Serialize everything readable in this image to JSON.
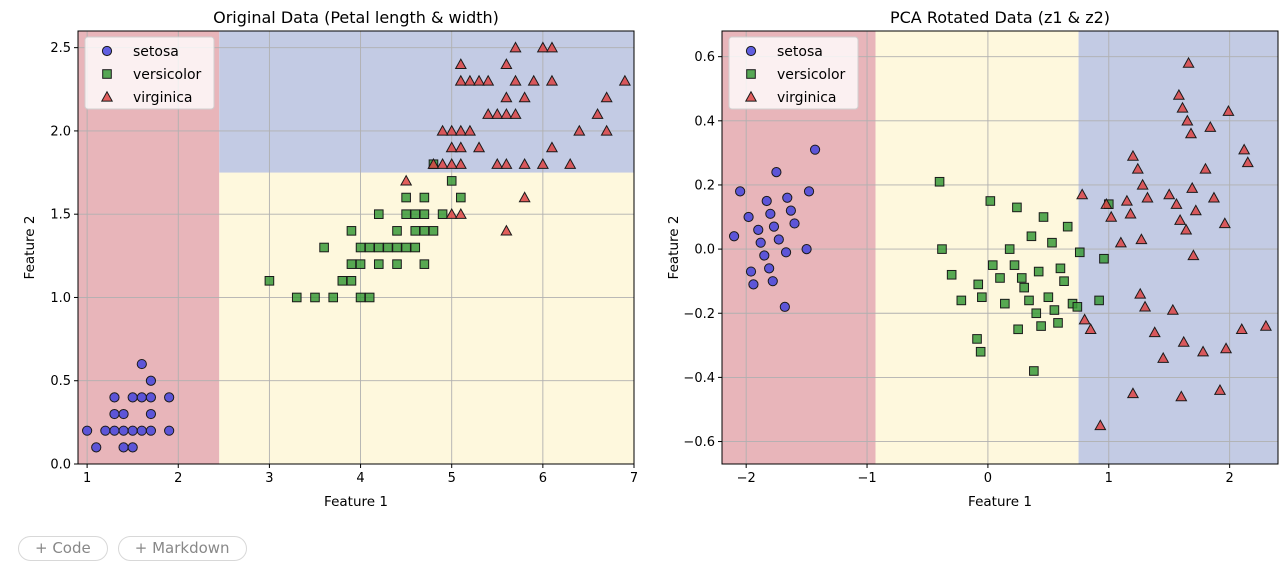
{
  "chart_data": [
    {
      "type": "scatter",
      "title": "Original Data (Petal length & width)",
      "xlabel": "Feature 1",
      "ylabel": "Feature 2",
      "xlim": [
        0.9,
        7.0
      ],
      "ylim": [
        0.0,
        2.6
      ],
      "xticks": [
        1,
        2,
        3,
        4,
        5,
        6,
        7
      ],
      "xtick_labels": [
        "1",
        "2",
        "3",
        "4",
        "5",
        "6",
        "7"
      ],
      "yticks": [
        0.0,
        0.5,
        1.0,
        1.5,
        2.0,
        2.5
      ],
      "ytick_labels": [
        "0.0",
        "0.5",
        "1.0",
        "1.5",
        "2.0",
        "2.5"
      ],
      "grid": true,
      "legend": "top-left",
      "decision_regions": [
        {
          "class": "setosa",
          "color": "#e8b5ba",
          "x": [
            0.9,
            2.45
          ],
          "y": [
            0.0,
            2.6
          ]
        },
        {
          "class": "versicolor",
          "color": "#fef8dd",
          "x": [
            2.45,
            7.0
          ],
          "y": [
            0.0,
            1.75
          ]
        },
        {
          "class": "virginica",
          "color": "#c3cbe4",
          "x": [
            2.45,
            7.0
          ],
          "y": [
            1.75,
            2.6
          ]
        }
      ],
      "series": [
        {
          "name": "setosa",
          "marker": "circle",
          "color": "#4444dd",
          "points": [
            [
              1.0,
              0.2
            ],
            [
              1.1,
              0.1
            ],
            [
              1.2,
              0.2
            ],
            [
              1.3,
              0.2
            ],
            [
              1.3,
              0.3
            ],
            [
              1.3,
              0.4
            ],
            [
              1.4,
              0.1
            ],
            [
              1.4,
              0.2
            ],
            [
              1.4,
              0.3
            ],
            [
              1.5,
              0.1
            ],
            [
              1.5,
              0.2
            ],
            [
              1.5,
              0.4
            ],
            [
              1.6,
              0.2
            ],
            [
              1.6,
              0.4
            ],
            [
              1.6,
              0.6
            ],
            [
              1.7,
              0.2
            ],
            [
              1.7,
              0.3
            ],
            [
              1.7,
              0.4
            ],
            [
              1.7,
              0.5
            ],
            [
              1.9,
              0.2
            ],
            [
              1.9,
              0.4
            ]
          ]
        },
        {
          "name": "versicolor",
          "marker": "square",
          "color": "#3a9a3a",
          "points": [
            [
              3.0,
              1.1
            ],
            [
              3.3,
              1.0
            ],
            [
              3.5,
              1.0
            ],
            [
              3.6,
              1.3
            ],
            [
              3.7,
              1.0
            ],
            [
              3.8,
              1.1
            ],
            [
              3.9,
              1.1
            ],
            [
              3.9,
              1.2
            ],
            [
              3.9,
              1.4
            ],
            [
              4.0,
              1.0
            ],
            [
              4.0,
              1.2
            ],
            [
              4.0,
              1.3
            ],
            [
              4.1,
              1.0
            ],
            [
              4.1,
              1.3
            ],
            [
              4.2,
              1.2
            ],
            [
              4.2,
              1.3
            ],
            [
              4.2,
              1.5
            ],
            [
              4.3,
              1.3
            ],
            [
              4.4,
              1.2
            ],
            [
              4.4,
              1.3
            ],
            [
              4.4,
              1.4
            ],
            [
              4.5,
              1.3
            ],
            [
              4.5,
              1.5
            ],
            [
              4.6,
              1.3
            ],
            [
              4.6,
              1.4
            ],
            [
              4.6,
              1.5
            ],
            [
              4.7,
              1.2
            ],
            [
              4.7,
              1.4
            ],
            [
              4.7,
              1.5
            ],
            [
              4.7,
              1.6
            ],
            [
              4.8,
              1.8
            ],
            [
              4.9,
              1.5
            ],
            [
              5.0,
              1.7
            ],
            [
              5.1,
              1.6
            ],
            [
              4.8,
              1.4
            ],
            [
              4.5,
              1.6
            ]
          ]
        },
        {
          "name": "virginica",
          "marker": "triangle",
          "color": "#dd4444",
          "points": [
            [
              4.5,
              1.7
            ],
            [
              4.8,
              1.8
            ],
            [
              4.9,
              1.8
            ],
            [
              5.0,
              1.5
            ],
            [
              5.0,
              1.9
            ],
            [
              5.0,
              2.0
            ],
            [
              5.1,
              1.5
            ],
            [
              5.1,
              1.8
            ],
            [
              5.1,
              1.9
            ],
            [
              5.1,
              2.0
            ],
            [
              5.1,
              2.3
            ],
            [
              5.1,
              2.4
            ],
            [
              5.2,
              2.0
            ],
            [
              5.2,
              2.3
            ],
            [
              5.3,
              1.9
            ],
            [
              5.3,
              2.3
            ],
            [
              5.4,
              2.1
            ],
            [
              5.4,
              2.3
            ],
            [
              5.5,
              1.8
            ],
            [
              5.5,
              2.1
            ],
            [
              5.6,
              1.4
            ],
            [
              5.6,
              1.8
            ],
            [
              5.6,
              2.1
            ],
            [
              5.6,
              2.2
            ],
            [
              5.6,
              2.4
            ],
            [
              5.7,
              2.1
            ],
            [
              5.7,
              2.3
            ],
            [
              5.7,
              2.5
            ],
            [
              5.8,
              1.6
            ],
            [
              5.8,
              1.8
            ],
            [
              5.8,
              2.2
            ],
            [
              5.9,
              2.3
            ],
            [
              6.0,
              1.8
            ],
            [
              6.0,
              2.5
            ],
            [
              6.1,
              1.9
            ],
            [
              6.1,
              2.3
            ],
            [
              6.1,
              2.5
            ],
            [
              6.3,
              1.8
            ],
            [
              6.4,
              2.0
            ],
            [
              6.6,
              2.1
            ],
            [
              6.7,
              2.0
            ],
            [
              6.7,
              2.2
            ],
            [
              6.9,
              2.3
            ],
            [
              4.9,
              2.0
            ],
            [
              5.0,
              1.8
            ]
          ]
        }
      ]
    },
    {
      "type": "scatter",
      "title": "PCA Rotated Data (z1 & z2)",
      "xlabel": "Feature 1",
      "ylabel": "Feature 2",
      "xlim": [
        -2.2,
        2.4
      ],
      "ylim": [
        -0.67,
        0.68
      ],
      "xticks": [
        -2,
        -1,
        0,
        1,
        2
      ],
      "xtick_labels": [
        "−2",
        "−1",
        "0",
        "1",
        "2"
      ],
      "yticks": [
        -0.6,
        -0.4,
        -0.2,
        0.0,
        0.2,
        0.4,
        0.6
      ],
      "ytick_labels": [
        "−0.6",
        "−0.4",
        "−0.2",
        "0.0",
        "0.2",
        "0.4",
        "0.6"
      ],
      "grid": true,
      "legend": "top-left",
      "decision_regions": [
        {
          "class": "setosa",
          "color": "#e8b5ba",
          "x": [
            -2.2,
            -0.93
          ],
          "y": [
            -0.67,
            0.68
          ]
        },
        {
          "class": "versicolor",
          "color": "#fef8dd",
          "x": [
            -0.93,
            0.75
          ],
          "y": [
            -0.67,
            0.68
          ]
        },
        {
          "class": "virginica",
          "color": "#c3cbe4",
          "x": [
            0.75,
            2.4
          ],
          "y": [
            -0.67,
            0.68
          ]
        }
      ],
      "series": [
        {
          "name": "setosa",
          "marker": "circle",
          "color": "#4444dd",
          "points": [
            [
              -2.1,
              0.04
            ],
            [
              -2.05,
              0.18
            ],
            [
              -1.98,
              0.1
            ],
            [
              -1.96,
              -0.07
            ],
            [
              -1.94,
              -0.11
            ],
            [
              -1.9,
              0.06
            ],
            [
              -1.88,
              0.02
            ],
            [
              -1.85,
              -0.02
            ],
            [
              -1.83,
              0.15
            ],
            [
              -1.81,
              -0.06
            ],
            [
              -1.8,
              0.11
            ],
            [
              -1.78,
              -0.1
            ],
            [
              -1.77,
              0.07
            ],
            [
              -1.75,
              0.24
            ],
            [
              -1.73,
              0.03
            ],
            [
              -1.68,
              -0.18
            ],
            [
              -1.67,
              -0.01
            ],
            [
              -1.66,
              0.16
            ],
            [
              -1.63,
              0.12
            ],
            [
              -1.6,
              0.08
            ],
            [
              -1.5,
              0.0
            ],
            [
              -1.48,
              0.18
            ],
            [
              -1.43,
              0.31
            ]
          ]
        },
        {
          "name": "versicolor",
          "marker": "square",
          "color": "#3a9a3a",
          "points": [
            [
              -0.4,
              0.21
            ],
            [
              -0.38,
              0.0
            ],
            [
              -0.3,
              -0.08
            ],
            [
              -0.22,
              -0.16
            ],
            [
              -0.09,
              -0.28
            ],
            [
              -0.08,
              -0.11
            ],
            [
              -0.06,
              -0.32
            ],
            [
              -0.05,
              -0.15
            ],
            [
              0.02,
              0.15
            ],
            [
              0.04,
              -0.05
            ],
            [
              0.1,
              -0.09
            ],
            [
              0.14,
              -0.17
            ],
            [
              0.18,
              0.0
            ],
            [
              0.22,
              -0.05
            ],
            [
              0.24,
              0.13
            ],
            [
              0.25,
              -0.25
            ],
            [
              0.28,
              -0.09
            ],
            [
              0.3,
              -0.12
            ],
            [
              0.34,
              -0.16
            ],
            [
              0.36,
              0.04
            ],
            [
              0.38,
              -0.38
            ],
            [
              0.4,
              -0.2
            ],
            [
              0.42,
              -0.07
            ],
            [
              0.44,
              -0.24
            ],
            [
              0.46,
              0.1
            ],
            [
              0.5,
              -0.15
            ],
            [
              0.53,
              0.02
            ],
            [
              0.55,
              -0.19
            ],
            [
              0.58,
              -0.23
            ],
            [
              0.6,
              -0.06
            ],
            [
              0.63,
              -0.1
            ],
            [
              0.66,
              0.07
            ],
            [
              0.7,
              -0.17
            ],
            [
              0.74,
              -0.18
            ],
            [
              0.76,
              -0.01
            ],
            [
              0.92,
              -0.16
            ],
            [
              0.96,
              -0.03
            ],
            [
              1.0,
              0.14
            ]
          ]
        },
        {
          "name": "virginica",
          "marker": "triangle",
          "color": "#dd4444",
          "points": [
            [
              0.78,
              0.17
            ],
            [
              0.8,
              -0.22
            ],
            [
              0.85,
              -0.25
            ],
            [
              0.93,
              -0.55
            ],
            [
              0.98,
              0.14
            ],
            [
              1.02,
              0.1
            ],
            [
              1.1,
              0.02
            ],
            [
              1.15,
              0.15
            ],
            [
              1.18,
              0.11
            ],
            [
              1.2,
              -0.45
            ],
            [
              1.2,
              0.29
            ],
            [
              1.24,
              0.25
            ],
            [
              1.26,
              -0.14
            ],
            [
              1.27,
              0.03
            ],
            [
              1.28,
              0.2
            ],
            [
              1.3,
              -0.18
            ],
            [
              1.32,
              0.16
            ],
            [
              1.38,
              -0.26
            ],
            [
              1.45,
              -0.34
            ],
            [
              1.5,
              0.17
            ],
            [
              1.53,
              -0.19
            ],
            [
              1.56,
              0.14
            ],
            [
              1.58,
              0.48
            ],
            [
              1.59,
              0.09
            ],
            [
              1.6,
              -0.46
            ],
            [
              1.61,
              0.44
            ],
            [
              1.62,
              -0.29
            ],
            [
              1.64,
              0.06
            ],
            [
              1.65,
              0.4
            ],
            [
              1.66,
              0.58
            ],
            [
              1.68,
              0.36
            ],
            [
              1.69,
              0.19
            ],
            [
              1.7,
              -0.02
            ],
            [
              1.72,
              0.12
            ],
            [
              1.78,
              -0.32
            ],
            [
              1.8,
              0.25
            ],
            [
              1.84,
              0.38
            ],
            [
              1.87,
              0.16
            ],
            [
              1.92,
              -0.44
            ],
            [
              1.96,
              0.08
            ],
            [
              1.97,
              -0.31
            ],
            [
              1.99,
              0.43
            ],
            [
              2.1,
              -0.25
            ],
            [
              2.12,
              0.31
            ],
            [
              2.15,
              0.27
            ],
            [
              2.3,
              -0.24
            ]
          ]
        }
      ]
    }
  ],
  "toolbar": {
    "code_label": "+ Code",
    "markdown_label": "+ Markdown"
  }
}
